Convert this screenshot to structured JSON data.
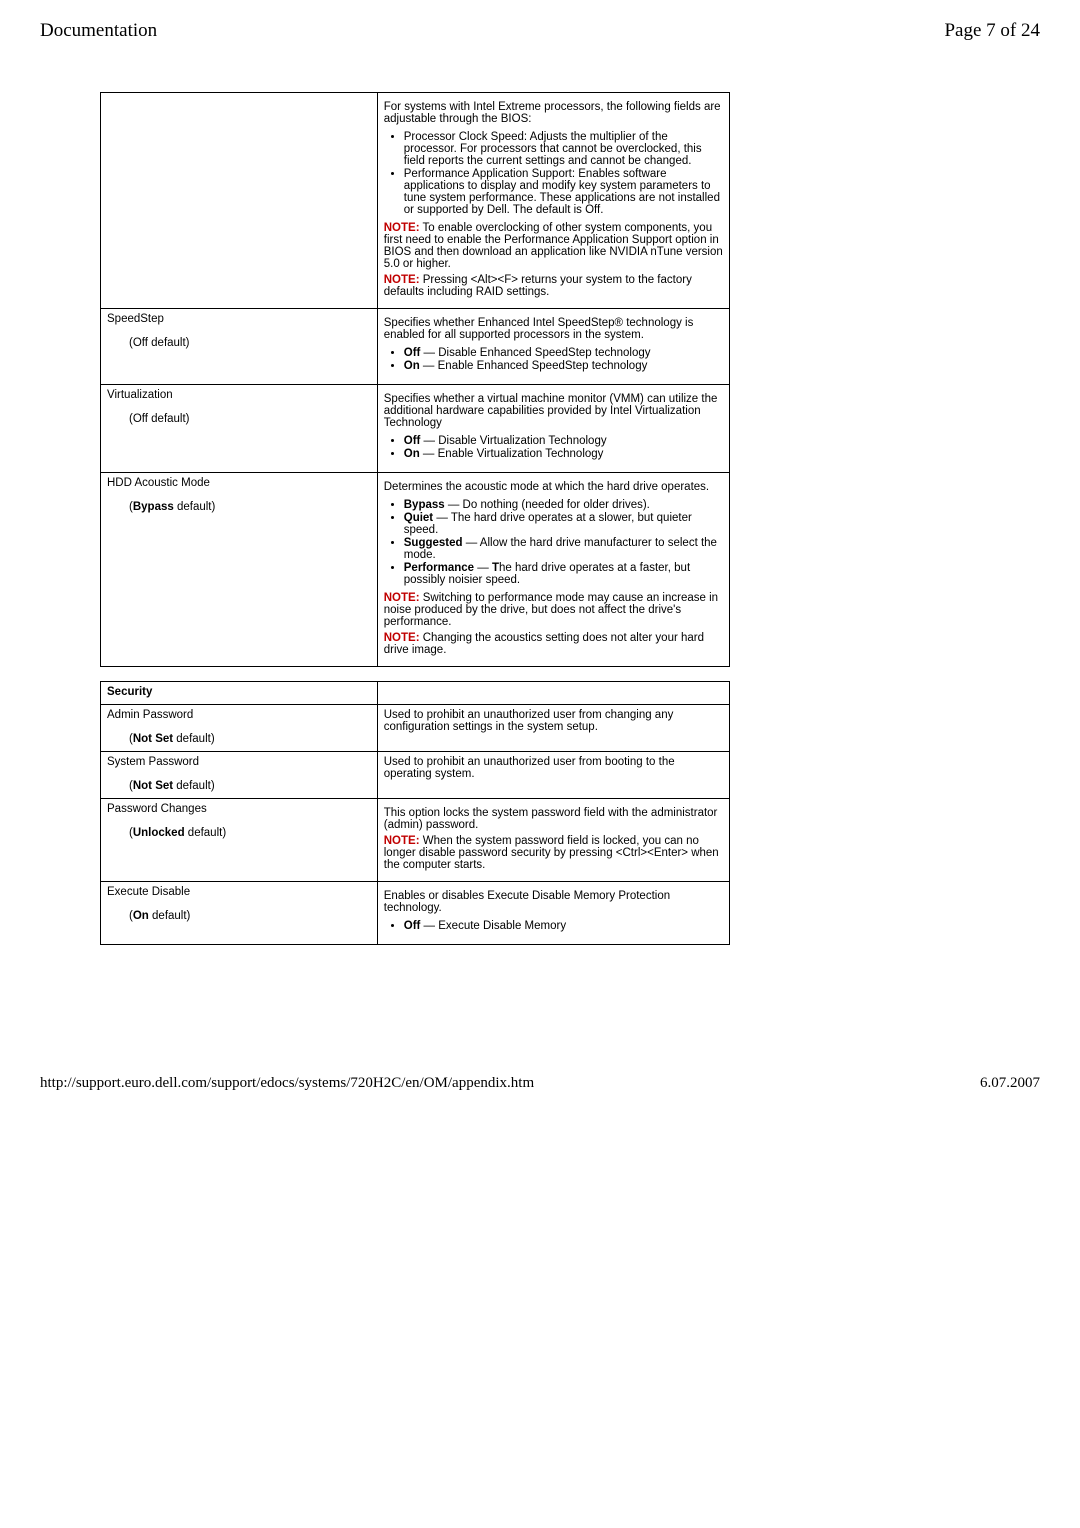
{
  "header": {
    "left": "Documentation",
    "right": "Page 7 of 24"
  },
  "footer": {
    "url": "http://support.euro.dell.com/support/edocs/systems/720H2C/en/OM/appendix.htm",
    "date": "6.07.2007"
  },
  "rows": [
    {
      "left_html": "",
      "right_html": "<p>For systems with Intel Extreme processors, the following fields are adjustable through the BIOS:</p><ul><li>Processor Clock Speed: Adjusts the multiplier of the processor. For processors that cannot be overclocked, this field reports the current settings and cannot be changed.</li><li>Performance Application Support: Enables software applications to display and modify key system parameters to tune system performance. These applications are not installed or supported by Dell. The default is Off.</li></ul><p><span class='note-red'><b>NOTE:</b></span> To enable overclocking of other system components, you first need to enable the Performance Application Support option in BIOS and then download an application like NVIDIA nTune version 5.0 or higher.</p><p><span class='note-red'><b>NOTE:</b></span> Pressing &lt;Alt&gt;&lt;F&gt; returns your system to the factory defaults including RAID settings.</p>"
    },
    {
      "left_html": "SpeedStep<br><br><span class='indent'>(Off default)</span>",
      "right_html": "<p>Specifies whether Enhanced Intel SpeedStep® technology is enabled for all supported processors in the system.</p><ul><li><b>Off</b> — Disable Enhanced SpeedStep technology</li><li><b>On</b> — Enable Enhanced SpeedStep technology</li></ul>"
    },
    {
      "left_html": "Virtualization<br><br><span class='indent'>(Off default)</span>",
      "right_html": "<p>Specifies whether a virtual machine monitor (VMM) can utilize the additional hardware capabilities provided by Intel Virtualization Technology</p><ul><li><b>Off</b> — Disable Virtualization Technology</li><li><b>On</b> — Enable Virtualization Technology</li></ul>"
    },
    {
      "left_html": "HDD Acoustic Mode<br><br><span class='indent'>(<b>Bypass</b> default)</span>",
      "right_html": "<p>Determines the acoustic mode at which the hard drive operates.</p><ul><li><b>Bypass</b> — Do nothing (needed for older drives).</li><li><b>Quiet</b> — The hard drive operates at a slower, but quieter speed.</li><li><b>Suggested</b> — Allow the hard drive manufacturer to select the mode.</li><li><b>Performance</b> — <b>T</b>he hard drive operates at a faster, but possibly noisier speed.</li></ul><p><span class='note-red'><b>NOTE:</b></span> Switching to performance mode may cause an increase in noise produced by the drive, but does not affect the drive's performance.</p><p><span class='note-red'><b>NOTE:</b></span> Changing the acoustics setting does not alter your hard drive image.</p>"
    }
  ],
  "security_header": "Security",
  "security_rows": [
    {
      "left_html": "Admin Password<br><br><span class='indent'>(<b>Not Set</b> default)</span>",
      "right_html": "Used to prohibit an unauthorized user from changing any configuration settings in the system setup."
    },
    {
      "left_html": "System Password<br><br><span class='indent'>(<b>Not Set</b> default)</span>",
      "right_html": "Used to prohibit an unauthorized user from booting to the operating system."
    },
    {
      "left_html": "Password Changes<br><br><span class='indent'>(<b>Unlocked</b> default)</span>",
      "right_html": "<p>This option locks the system password field with the administrator (admin) password.</p><p><span class='note-red'><b>NOTE:</b></span> When the system password field is locked, you can no longer disable password security by pressing &lt;Ctrl&gt;&lt;Enter&gt; when the computer starts.</p>"
    },
    {
      "left_html": "Execute Disable<br><br><span class='indent'>(<b>On</b> default)</span>",
      "right_html": "<p>Enables or disables Execute Disable Memory Protection technology.</p><ul><li><b>Off</b> — Execute Disable Memory</li></ul>"
    }
  ]
}
